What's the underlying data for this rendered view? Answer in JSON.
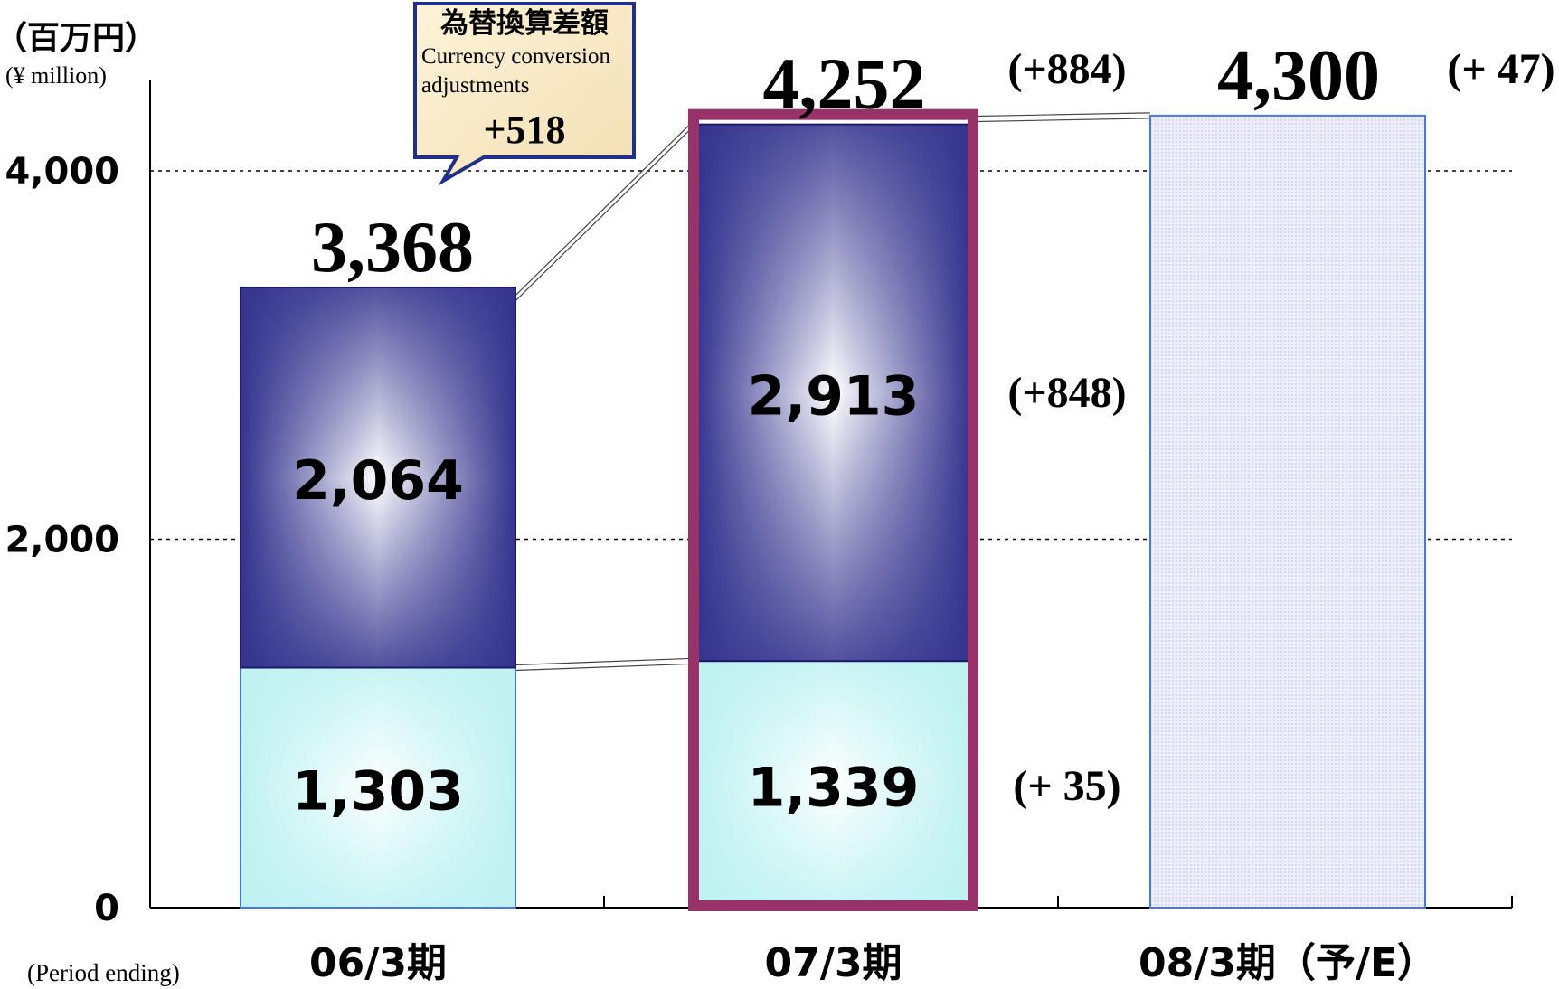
{
  "unit_label_jp": "（百万円）",
  "unit_label_en": "(¥ million)",
  "x_note": "(Period ending)",
  "callout": {
    "title_jp": "為替換算差額",
    "title_en_1": "Currency conversion",
    "title_en_2": "adjustments",
    "value": "+518"
  },
  "colors": {
    "dark_bar": "#34348f",
    "light_bar": "#bff2f2",
    "forecast_bar": "#e4e8f8",
    "highlight_border": "#98336a",
    "bar_outline": "#4a78e0"
  },
  "chart_data": {
    "type": "bar",
    "stacked": true,
    "categories": [
      "06/3期",
      "07/3期",
      "08/3期（予/E）"
    ],
    "y_ticks": [
      "0",
      "2,000",
      "4,000"
    ],
    "ylim": [
      0,
      4500
    ],
    "grid": "horizontal-dotted",
    "series": [
      {
        "values": [
          1303,
          1339,
          null
        ],
        "labels": [
          "1,303",
          "1,339",
          ""
        ]
      },
      {
        "values": [
          2064,
          2913,
          null
        ],
        "labels": [
          "2,064",
          "2,913",
          ""
        ]
      },
      {
        "values": [
          null,
          null,
          4300
        ],
        "labels": [
          "",
          "",
          ""
        ]
      }
    ],
    "totals": [
      3368,
      4252,
      4300
    ],
    "total_labels": [
      "3,368",
      "4,252",
      "4,300"
    ],
    "change_labels": {
      "total_07": "(+884)",
      "upper_07": "(+848)",
      "lower_07": "(+ 35)",
      "total_08": "(+ 47)"
    },
    "highlight_category": "07/3期"
  }
}
